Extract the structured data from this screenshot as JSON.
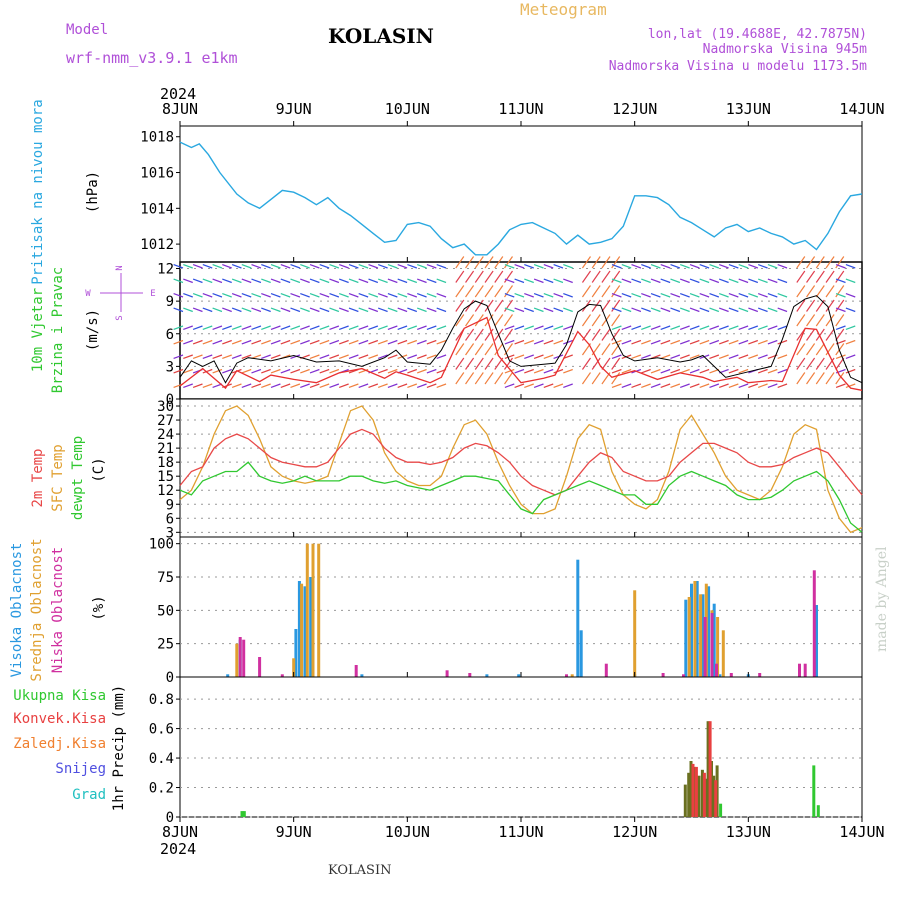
{
  "header": {
    "model_label": "Model",
    "model_name": "wrf-nmm_v3.9.1 e1km",
    "station": "KOLASIN",
    "product": "Meteogram",
    "coords": "lon,lat (19.4688E, 42.7875N)",
    "elevation": "Nadmorska Visina 945m",
    "model_elevation": "Nadmorska Visina u modelu 1173.5m",
    "year": "2024",
    "footer_station": "KOLASIN",
    "credit": "made by Angel"
  },
  "colors": {
    "pressure": "#2aa8e0",
    "wind_speed": "#e83030",
    "wind_gust": "#000000",
    "t2m": "#e84848",
    "tsfc": "#e0a030",
    "dewpoint": "#30c830",
    "cloud_high": "#2a98e0",
    "cloud_mid": "#e0a030",
    "cloud_low": "#d030a0",
    "precip_total": "#30c830",
    "precip_conv": "#e84040",
    "precip_frozen": "#f08030",
    "snow": "#5050e0",
    "graupel": "#20c0c0",
    "model_text": "#b050d8"
  },
  "x_axis": {
    "ticks": [
      "8JUN",
      "9JUN",
      "10JUN",
      "11JUN",
      "12JUN",
      "13JUN",
      "14JUN"
    ],
    "range_days": [
      0,
      6
    ]
  },
  "panels": {
    "pressure": {
      "ylabel": "Pritisak na nivou mora",
      "unit": "(hPa)",
      "ticks": [
        "1012",
        "1014",
        "1016",
        "1018"
      ]
    },
    "wind": {
      "ylabel1": "10m Vjetar",
      "ylabel2": "Brzina i Pravac",
      "unit": "(m/s)",
      "ticks": [
        "0",
        "3",
        "6",
        "9",
        "12"
      ],
      "compass": {
        "n": "N",
        "s": "S",
        "e": "E",
        "w": "W"
      }
    },
    "temp": {
      "ylabel1": "2m Temp",
      "ylabel2": "SFC Temp",
      "ylabel3": "dewpt Temp",
      "unit": "(C)",
      "ticks": [
        "3",
        "6",
        "9",
        "12",
        "15",
        "18",
        "21",
        "24",
        "27",
        "30"
      ]
    },
    "cloud": {
      "ylabel1": "Visoka Oblacnost",
      "ylabel2": "Srednja Oblacnost",
      "ylabel3": "Niska Oblacnost",
      "unit": "(%)",
      "ticks": [
        "0",
        "25",
        "50",
        "75",
        "100"
      ]
    },
    "precip": {
      "unit": "1hr Precip (mm)",
      "ticks": [
        "0",
        "0.2",
        "0.4",
        "0.6",
        "0.8"
      ],
      "legend": [
        "Ukupna Kisa",
        "Konvek.Kisa",
        "Zaledj.Kisa",
        "Snijeg",
        "Grad"
      ]
    }
  },
  "chart_data": [
    {
      "type": "line",
      "title": "Pritisak na nivou mora",
      "ylabel": "(hPa)",
      "xlim_days": [
        0,
        6
      ],
      "ylim": [
        1011,
        1018.6
      ],
      "series": [
        {
          "name": "Pritisak na nivou mora",
          "x": [
            0,
            0.1,
            0.17,
            0.25,
            0.35,
            0.5,
            0.6,
            0.7,
            0.8,
            0.9,
            1.0,
            1.1,
            1.2,
            1.3,
            1.4,
            1.5,
            1.6,
            1.7,
            1.8,
            1.9,
            2.0,
            2.1,
            2.2,
            2.3,
            2.4,
            2.5,
            2.6,
            2.7,
            2.8,
            2.9,
            3.0,
            3.1,
            3.2,
            3.3,
            3.4,
            3.5,
            3.6,
            3.7,
            3.8,
            3.9,
            4.0,
            4.1,
            4.2,
            4.3,
            4.4,
            4.5,
            4.6,
            4.7,
            4.8,
            4.9,
            5.0,
            5.1,
            5.2,
            5.3,
            5.4,
            5.5,
            5.6,
            5.7,
            5.8,
            5.9,
            6.0
          ],
          "y": [
            1017.7,
            1017.4,
            1017.6,
            1017.0,
            1016.0,
            1014.8,
            1014.3,
            1014.0,
            1014.5,
            1015.0,
            1014.9,
            1014.6,
            1014.2,
            1014.6,
            1014.0,
            1013.6,
            1013.1,
            1012.6,
            1012.1,
            1012.2,
            1013.1,
            1013.2,
            1013.0,
            1012.3,
            1011.8,
            1012.0,
            1011.4,
            1011.4,
            1012.0,
            1012.8,
            1013.1,
            1013.2,
            1012.9,
            1012.6,
            1012.0,
            1012.5,
            1012.0,
            1012.1,
            1012.3,
            1013.0,
            1014.7,
            1014.7,
            1014.6,
            1014.2,
            1013.5,
            1013.2,
            1012.8,
            1012.4,
            1012.9,
            1013.1,
            1012.7,
            1012.9,
            1012.6,
            1012.4,
            1012.0,
            1012.2,
            1011.7,
            1012.6,
            1013.8,
            1014.7,
            1014.8
          ]
        }
      ]
    },
    {
      "type": "line",
      "title": "10m Vjetar Brzina i Pravac",
      "ylabel": "(m/s)",
      "xlim_days": [
        0,
        6
      ],
      "ylim": [
        0,
        12.6
      ],
      "series": [
        {
          "name": "speed",
          "x": [
            0,
            0.2,
            0.4,
            0.5,
            0.7,
            0.8,
            1.0,
            1.2,
            1.4,
            1.6,
            1.8,
            1.9,
            2.0,
            2.2,
            2.3,
            2.5,
            2.7,
            2.8,
            3.0,
            3.2,
            3.3,
            3.5,
            3.6,
            3.7,
            3.8,
            4.0,
            4.2,
            4.4,
            4.6,
            4.7,
            4.8,
            4.9,
            5.0,
            5.2,
            5.3,
            5.5,
            5.6,
            5.8,
            5.9,
            6.0
          ],
          "y": [
            1.2,
            2.8,
            1.0,
            2.6,
            1.6,
            2.2,
            1.8,
            1.5,
            2.4,
            2.8,
            1.9,
            2.5,
            2.2,
            1.5,
            2.0,
            6.5,
            7.5,
            4.0,
            1.5,
            1.9,
            2.2,
            6.2,
            5.0,
            3.0,
            2.0,
            2.6,
            1.8,
            2.4,
            2.0,
            1.6,
            1.8,
            2.0,
            1.5,
            1.7,
            1.6,
            6.5,
            6.4,
            2.2,
            1.0,
            0.8
          ]
        },
        {
          "name": "gust",
          "x": [
            0,
            0.1,
            0.2,
            0.3,
            0.4,
            0.5,
            0.6,
            0.8,
            1.0,
            1.2,
            1.4,
            1.6,
            1.8,
            1.9,
            2.0,
            2.2,
            2.3,
            2.4,
            2.5,
            2.6,
            2.7,
            2.8,
            2.9,
            3.0,
            3.2,
            3.3,
            3.4,
            3.5,
            3.6,
            3.7,
            3.8,
            3.9,
            4.0,
            4.2,
            4.4,
            4.5,
            4.6,
            4.7,
            4.8,
            5.0,
            5.2,
            5.3,
            5.4,
            5.5,
            5.6,
            5.7,
            5.8,
            5.9,
            6.0
          ],
          "y": [
            2.0,
            3.5,
            3.0,
            3.5,
            1.5,
            3.3,
            3.8,
            3.5,
            4.0,
            3.4,
            3.5,
            3.0,
            3.8,
            4.5,
            3.4,
            3.2,
            4.5,
            6.5,
            8.3,
            9.0,
            8.6,
            6.0,
            3.5,
            3.0,
            3.2,
            3.3,
            5.0,
            8.0,
            8.7,
            8.6,
            6.0,
            4.0,
            3.5,
            3.8,
            3.4,
            3.6,
            4.0,
            3.0,
            2.0,
            2.5,
            3.0,
            5.5,
            8.5,
            9.2,
            9.5,
            8.5,
            4.5,
            2.0,
            1.5
          ]
        }
      ]
    },
    {
      "type": "line",
      "title": "2m Temp / SFC Temp / dewpt Temp",
      "ylabel": "(C)",
      "xlim_days": [
        0,
        6
      ],
      "ylim": [
        2,
        31.5
      ],
      "series": [
        {
          "name": "2m Temp",
          "x": [
            0,
            0.1,
            0.2,
            0.3,
            0.4,
            0.5,
            0.6,
            0.7,
            0.8,
            0.9,
            1.0,
            1.1,
            1.2,
            1.3,
            1.4,
            1.5,
            1.6,
            1.7,
            1.8,
            1.9,
            2.0,
            2.1,
            2.2,
            2.3,
            2.4,
            2.5,
            2.6,
            2.7,
            2.8,
            2.9,
            3.0,
            3.1,
            3.2,
            3.3,
            3.4,
            3.5,
            3.6,
            3.7,
            3.8,
            3.9,
            4.0,
            4.1,
            4.2,
            4.3,
            4.4,
            4.5,
            4.6,
            4.7,
            4.8,
            4.9,
            5.0,
            5.1,
            5.2,
            5.3,
            5.4,
            5.5,
            5.6,
            5.7,
            5.8,
            5.9,
            6.0
          ],
          "y": [
            13,
            16,
            17,
            21,
            23,
            24,
            23,
            21,
            19,
            18,
            17.5,
            17,
            17,
            18,
            21,
            24,
            25,
            24,
            21,
            19,
            18,
            18,
            17.5,
            18,
            19,
            21,
            22,
            21.5,
            20,
            18,
            15,
            13,
            12,
            11,
            12,
            15,
            18,
            20,
            19,
            16,
            15,
            14,
            14,
            15,
            18,
            20,
            22,
            22,
            21,
            20,
            18,
            17,
            17,
            17.5,
            19,
            20,
            21,
            20,
            17,
            14,
            11
          ]
        },
        {
          "name": "SFC Temp",
          "x": [
            0,
            0.1,
            0.2,
            0.3,
            0.4,
            0.5,
            0.6,
            0.7,
            0.8,
            0.9,
            1.0,
            1.1,
            1.2,
            1.3,
            1.4,
            1.5,
            1.6,
            1.7,
            1.8,
            1.9,
            2.0,
            2.1,
            2.2,
            2.3,
            2.4,
            2.5,
            2.6,
            2.7,
            2.8,
            2.9,
            3.0,
            3.1,
            3.2,
            3.3,
            3.4,
            3.5,
            3.6,
            3.7,
            3.8,
            3.9,
            4.0,
            4.1,
            4.2,
            4.3,
            4.4,
            4.5,
            4.6,
            4.7,
            4.8,
            4.9,
            5.0,
            5.1,
            5.2,
            5.3,
            5.4,
            5.5,
            5.6,
            5.7,
            5.8,
            5.9,
            6.0
          ],
          "y": [
            10,
            12,
            17,
            24,
            29,
            30,
            28,
            23,
            17,
            15,
            14,
            13.5,
            14,
            15,
            22,
            29,
            30,
            27,
            20,
            16,
            14,
            13,
            13,
            15,
            21,
            26,
            27,
            24,
            18,
            13,
            9,
            7,
            7,
            8,
            15,
            23,
            26,
            25,
            16,
            11,
            9,
            8,
            10,
            16,
            25,
            28,
            24,
            20,
            15,
            12,
            11,
            10,
            12,
            17,
            24,
            26,
            25,
            12,
            6,
            3,
            4
          ]
        },
        {
          "name": "dewpt Temp",
          "x": [
            0,
            0.1,
            0.2,
            0.3,
            0.4,
            0.5,
            0.6,
            0.7,
            0.8,
            0.9,
            1.0,
            1.1,
            1.2,
            1.3,
            1.4,
            1.5,
            1.6,
            1.7,
            1.8,
            1.9,
            2.0,
            2.1,
            2.2,
            2.3,
            2.4,
            2.5,
            2.6,
            2.7,
            2.8,
            2.9,
            3.0,
            3.1,
            3.2,
            3.3,
            3.4,
            3.5,
            3.6,
            3.7,
            3.8,
            3.9,
            4.0,
            4.1,
            4.2,
            4.3,
            4.4,
            4.5,
            4.6,
            4.7,
            4.8,
            4.9,
            5.0,
            5.1,
            5.2,
            5.3,
            5.4,
            5.5,
            5.6,
            5.7,
            5.8,
            5.9,
            6.0
          ],
          "y": [
            12,
            11,
            14,
            15,
            16,
            16,
            18,
            15,
            14,
            13.5,
            14,
            15,
            14,
            14,
            14,
            15,
            15,
            14,
            13.5,
            14,
            13,
            12.5,
            12,
            13,
            14,
            15,
            15,
            14.5,
            14,
            11,
            8,
            7,
            10,
            11,
            12,
            13,
            14,
            13,
            12,
            11,
            11,
            9,
            9,
            13,
            15,
            16,
            15,
            14,
            13,
            11,
            10,
            10,
            10.5,
            12,
            14,
            15,
            16,
            14,
            10,
            5,
            3
          ]
        }
      ]
    },
    {
      "type": "bar",
      "title": "Oblacnost",
      "ylabel": "(%)",
      "xlim_days": [
        0,
        6
      ],
      "ylim": [
        0,
        105
      ],
      "series": [
        {
          "name": "Visoka Oblacnost",
          "x": [
            0.42,
            0.53,
            1.02,
            1.05,
            1.1,
            1.15,
            1.6,
            2.7,
            2.98,
            3.5,
            3.53,
            4.0,
            4.45,
            4.5,
            4.55,
            4.6,
            4.65,
            4.7,
            4.75,
            5.0,
            5.6
          ],
          "y": [
            2,
            28,
            36,
            72,
            68,
            75,
            2,
            2,
            2,
            88,
            35,
            2,
            58,
            70,
            72,
            62,
            68,
            55,
            2,
            2,
            54
          ]
        },
        {
          "name": "Srednja Oblacnost",
          "x": [
            0.5,
            1.0,
            1.07,
            1.12,
            1.17,
            1.22,
            3.45,
            4.0,
            4.48,
            4.53,
            4.58,
            4.63,
            4.68,
            4.73,
            4.78
          ],
          "y": [
            25,
            14,
            70,
            100,
            100,
            100,
            2,
            65,
            60,
            72,
            62,
            70,
            50,
            45,
            35
          ]
        },
        {
          "name": "Niska Oblacnost",
          "x": [
            0.53,
            0.56,
            0.7,
            0.9,
            1.55,
            2.35,
            2.55,
            3.4,
            3.75,
            4.25,
            4.43,
            4.62,
            4.68,
            4.72,
            4.85,
            5.1,
            5.45,
            5.5,
            5.58
          ],
          "y": [
            30,
            28,
            15,
            2,
            9,
            5,
            3,
            2,
            10,
            3,
            2,
            45,
            48,
            10,
            3,
            3,
            10,
            10,
            80
          ]
        }
      ]
    },
    {
      "type": "bar",
      "title": "1hr Precip",
      "ylabel": "1hr Precip (mm)",
      "xlim_days": [
        0,
        6
      ],
      "ylim": [
        0,
        0.95
      ],
      "series": [
        {
          "name": "Ukupna Kisa",
          "x": [
            0.55,
            0.57,
            4.45,
            4.48,
            4.5,
            4.53,
            4.57,
            4.6,
            4.63,
            4.65,
            4.68,
            4.7,
            4.73,
            4.76,
            5.58,
            5.62
          ],
          "y": [
            0.04,
            0.04,
            0.22,
            0.3,
            0.38,
            0.34,
            0.28,
            0.32,
            0.26,
            0.65,
            0.38,
            0.28,
            0.35,
            0.09,
            0.35,
            0.08
          ]
        },
        {
          "name": "Konvek.Kisa",
          "x": [
            4.5,
            4.53,
            4.6,
            4.65,
            4.7
          ],
          "y": [
            0.36,
            0.34,
            0.3,
            0.65,
            0.25
          ]
        }
      ]
    }
  ]
}
